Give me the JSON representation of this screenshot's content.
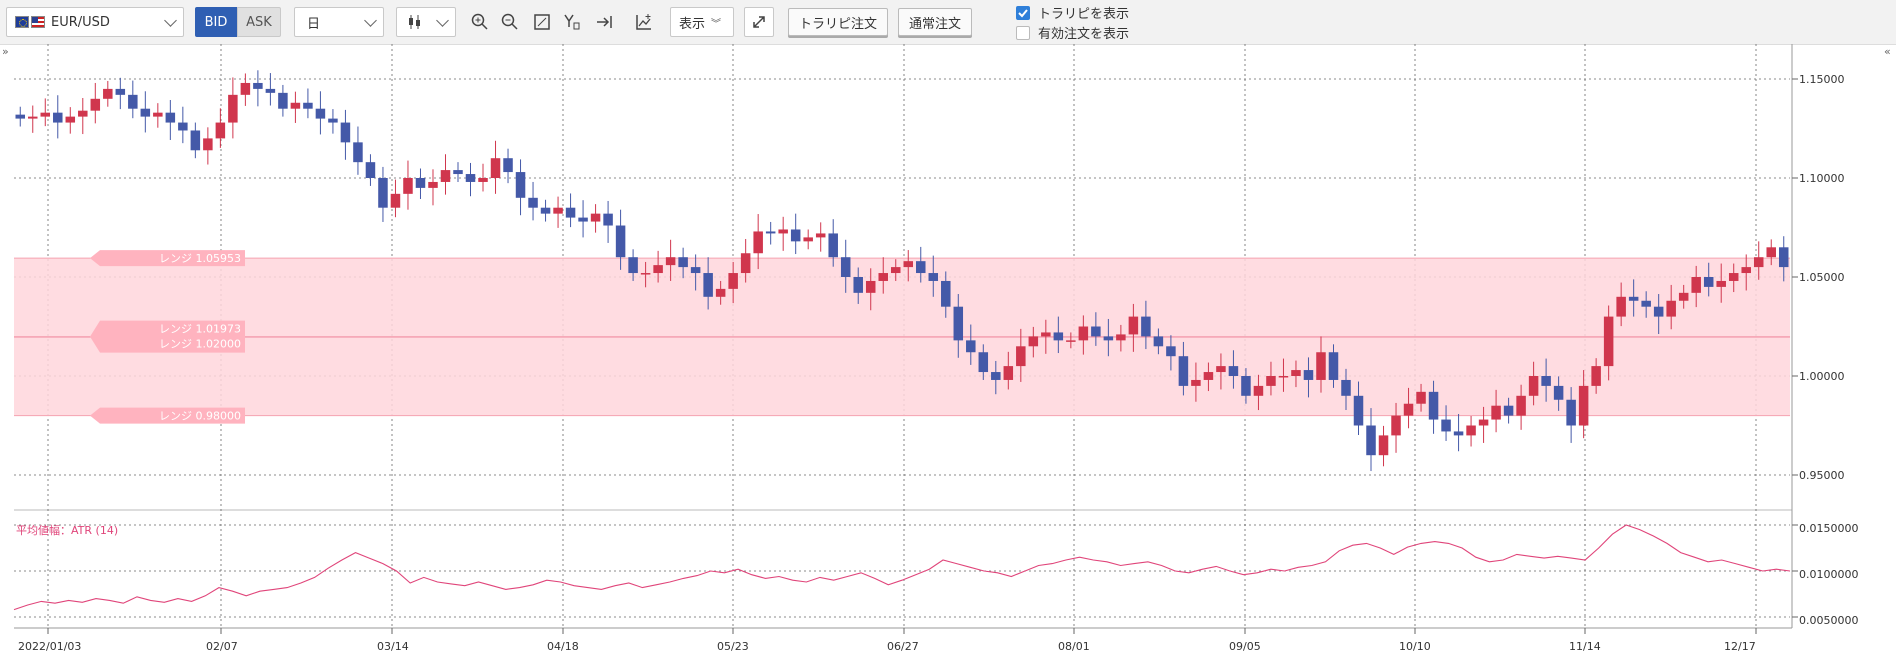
{
  "toolbar": {
    "pair": "EUR/USD",
    "bid_label": "BID",
    "ask_label": "ASK",
    "period": "日",
    "display_label": "表示",
    "trarip_order_label": "トラリピ注文",
    "normal_order_label": "通常注文",
    "show_trarip_label": "トラリピを表示",
    "show_valid_orders_label": "有効注文を表示",
    "show_trarip_checked": true,
    "show_valid_orders_checked": false,
    "icons": [
      "zoom-in-icon",
      "zoom-out-icon",
      "fit-icon",
      "draw-tool-icon",
      "scroll-end-icon",
      "indicator-icon"
    ]
  },
  "main_chart": {
    "y_ticks": [
      "1.15000",
      "1.10000",
      "1.05000",
      "1.00000",
      "0.95000"
    ],
    "range_labels": [
      "レンジ 1.05953",
      "レンジ 1.01973",
      "レンジ 1.02000",
      "レンジ 0.98000"
    ],
    "range_band": {
      "upper": 1.05953,
      "lower": 0.98,
      "mid": 1.01973
    },
    "up_color": "#d0364d",
    "down_color": "#4459a8",
    "band_color": "#ffd6dc"
  },
  "sub_chart": {
    "title": "平均値幅：ATR (14)",
    "y_ticks": [
      "0.0150000",
      "0.0100000",
      "0.0050000"
    ],
    "line_color": "#e0457a"
  },
  "x_axis": {
    "labels": [
      "2022/01/03",
      "02/07",
      "03/14",
      "04/18",
      "05/23",
      "06/27",
      "08/01",
      "09/05",
      "10/10",
      "11/14",
      "12/17"
    ]
  },
  "chart_data": [
    {
      "type": "candlestick",
      "title": "",
      "series": [
        {
          "name": "EUR/USD",
          "close": [
            1.13,
            1.131,
            1.133,
            1.128,
            1.131,
            1.134,
            1.14,
            1.145,
            1.142,
            1.135,
            1.131,
            1.133,
            1.128,
            1.124,
            1.114,
            1.12,
            1.128,
            1.142,
            1.148,
            1.145,
            1.143,
            1.135,
            1.138,
            1.135,
            1.13,
            1.128,
            1.118,
            1.108,
            1.1,
            1.085,
            1.092,
            1.1,
            1.095,
            1.098,
            1.104,
            1.102,
            1.098,
            1.1,
            1.11,
            1.103,
            1.09,
            1.085,
            1.082,
            1.085,
            1.08,
            1.078,
            1.082,
            1.076,
            1.06,
            1.052,
            1.052,
            1.056,
            1.06,
            1.055,
            1.052,
            1.04,
            1.044,
            1.052,
            1.062,
            1.073,
            1.072,
            1.074,
            1.068,
            1.07,
            1.072,
            1.06,
            1.05,
            1.042,
            1.048,
            1.052,
            1.055,
            1.058,
            1.052,
            1.048,
            1.035,
            1.018,
            1.012,
            1.002,
            0.998,
            1.005,
            1.015,
            1.02,
            1.022,
            1.018,
            1.018,
            1.025,
            1.02,
            1.018,
            1.021,
            1.03,
            1.02,
            1.015,
            1.01,
            0.995,
            0.998,
            1.002,
            1.005,
            1.0,
            0.99,
            0.995,
            1.0,
            1.0,
            1.003,
            0.998,
            1.012,
            0.998,
            0.99,
            0.975,
            0.96,
            0.97,
            0.98,
            0.986,
            0.992,
            0.978,
            0.972,
            0.97,
            0.975,
            0.978,
            0.985,
            0.98,
            0.99,
            1.0,
            0.995,
            0.988,
            0.975,
            0.995,
            1.005,
            1.03,
            1.04,
            1.038,
            1.035,
            1.03,
            1.038,
            1.042,
            1.05,
            1.045,
            1.048,
            1.052,
            1.055,
            1.06,
            1.065,
            1.055
          ]
        }
      ]
    },
    {
      "type": "line",
      "title": "平均値幅：ATR (14)",
      "series": [
        {
          "name": "ATR (14)",
          "values": [
            0.0058,
            0.0063,
            0.0067,
            0.0065,
            0.0068,
            0.0066,
            0.007,
            0.0068,
            0.0065,
            0.0072,
            0.0068,
            0.0066,
            0.007,
            0.0067,
            0.0073,
            0.0082,
            0.0078,
            0.0073,
            0.0078,
            0.008,
            0.0082,
            0.0087,
            0.0093,
            0.0103,
            0.0112,
            0.012,
            0.0114,
            0.0108,
            0.01,
            0.0087,
            0.0093,
            0.0088,
            0.0086,
            0.0084,
            0.0088,
            0.0084,
            0.008,
            0.0082,
            0.0085,
            0.009,
            0.0088,
            0.0084,
            0.0082,
            0.008,
            0.0084,
            0.0087,
            0.0082,
            0.0085,
            0.0088,
            0.0092,
            0.0095,
            0.01,
            0.0098,
            0.0102,
            0.0096,
            0.0092,
            0.0094,
            0.009,
            0.0088,
            0.0093,
            0.009,
            0.0094,
            0.0098,
            0.0092,
            0.0085,
            0.009,
            0.0096,
            0.0102,
            0.0112,
            0.0108,
            0.0104,
            0.01,
            0.0098,
            0.0094,
            0.01,
            0.0106,
            0.0108,
            0.0112,
            0.0115,
            0.0112,
            0.011,
            0.0106,
            0.0108,
            0.011,
            0.0106,
            0.01,
            0.0098,
            0.0102,
            0.0105,
            0.01,
            0.0096,
            0.0098,
            0.0102,
            0.01,
            0.0104,
            0.0106,
            0.011,
            0.0122,
            0.0128,
            0.013,
            0.0125,
            0.0118,
            0.0126,
            0.013,
            0.0132,
            0.013,
            0.0125,
            0.0115,
            0.011,
            0.0112,
            0.0118,
            0.0116,
            0.0114,
            0.0116,
            0.0114,
            0.0112,
            0.0125,
            0.014,
            0.015,
            0.0145,
            0.0138,
            0.013,
            0.012,
            0.0115,
            0.011,
            0.0112,
            0.0108,
            0.0104,
            0.01,
            0.0102,
            0.01
          ]
        }
      ]
    }
  ]
}
